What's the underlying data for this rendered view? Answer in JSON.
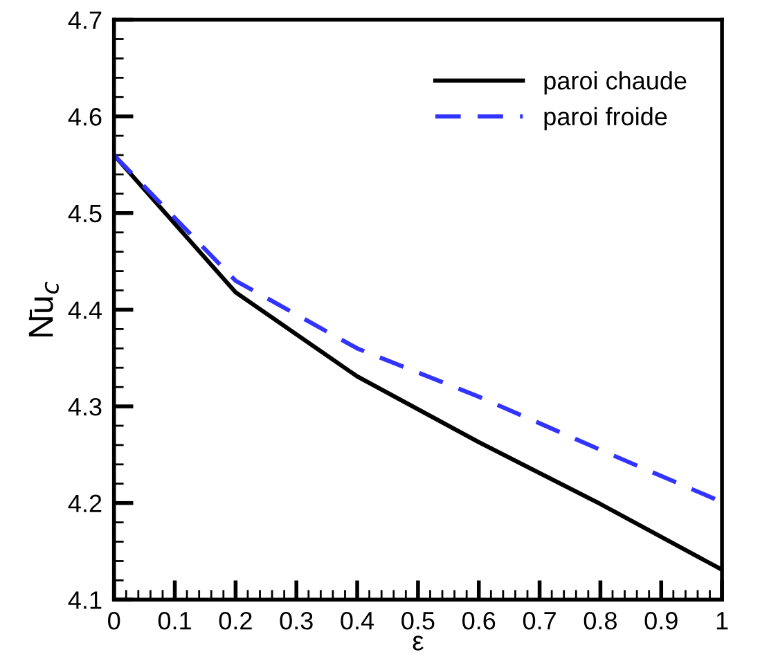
{
  "chart_data": {
    "type": "line",
    "xlabel": "ε",
    "ylabel": "N̄u$_{c}$",
    "x": [
      0,
      0.2,
      0.4,
      0.6,
      0.8,
      1.0
    ],
    "series": [
      {
        "name": "paroi chaude",
        "color": "#000000",
        "line_style": "solid",
        "values": [
          4.56,
          4.418,
          4.331,
          4.263,
          4.199,
          4.131
        ]
      },
      {
        "name": "paroi froide",
        "color": "#3333ff",
        "line_style": "dashed",
        "values": [
          4.56,
          4.43,
          4.36,
          4.31,
          4.255,
          4.201
        ]
      }
    ],
    "xlim": [
      0,
      1
    ],
    "xticks": [
      0,
      0.1,
      0.2,
      0.3,
      0.4,
      0.5,
      0.6,
      0.7,
      0.8,
      0.9,
      1
    ],
    "ylim": [
      4.1,
      4.7
    ],
    "yticks": [
      4.1,
      4.2,
      4.3,
      4.4,
      4.5,
      4.6,
      4.7
    ],
    "grid": false,
    "legend": "top right",
    "marker": "none"
  }
}
